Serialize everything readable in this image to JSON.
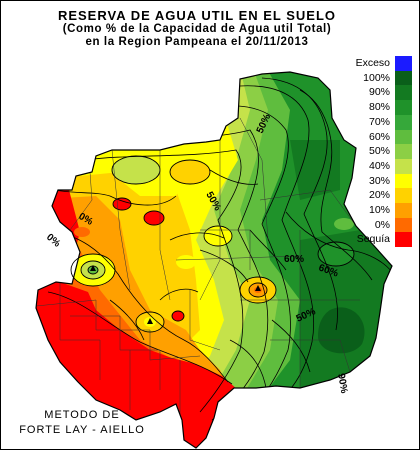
{
  "title": {
    "line1": "RESERVA DE AGUA UTIL EN EL SUELO",
    "line2": "(Como %  de la Capacidad de  Agua util Total)",
    "line3": "en la Region Pampeana el 20/11/2013"
  },
  "legend": [
    {
      "label": "Exceso",
      "color": "#1b1bff"
    },
    {
      "label": "100%",
      "color": "#0a5f1a"
    },
    {
      "label": "90%",
      "color": "#137a21"
    },
    {
      "label": "80%",
      "color": "#1f922a"
    },
    {
      "label": "70%",
      "color": "#36a83a"
    },
    {
      "label": "60%",
      "color": "#5fbd3e"
    },
    {
      "label": "50%",
      "color": "#8ccf45"
    },
    {
      "label": "40%",
      "color": "#c5e24a"
    },
    {
      "label": "30%",
      "color": "#ffff00"
    },
    {
      "label": "20%",
      "color": "#ffd200"
    },
    {
      "label": "10%",
      "color": "#ffa000"
    },
    {
      "label": "0%",
      "color": "#ff6a00"
    },
    {
      "label": "Sequía",
      "color": "#ff0000"
    }
  ],
  "contour_labels": [
    "0%",
    "0%",
    "50%",
    "50%",
    "60%",
    "60%",
    "50%",
    "90%"
  ],
  "method": {
    "line1": "METODO DE",
    "line2": "FORTE LAY - AIELLO"
  }
}
